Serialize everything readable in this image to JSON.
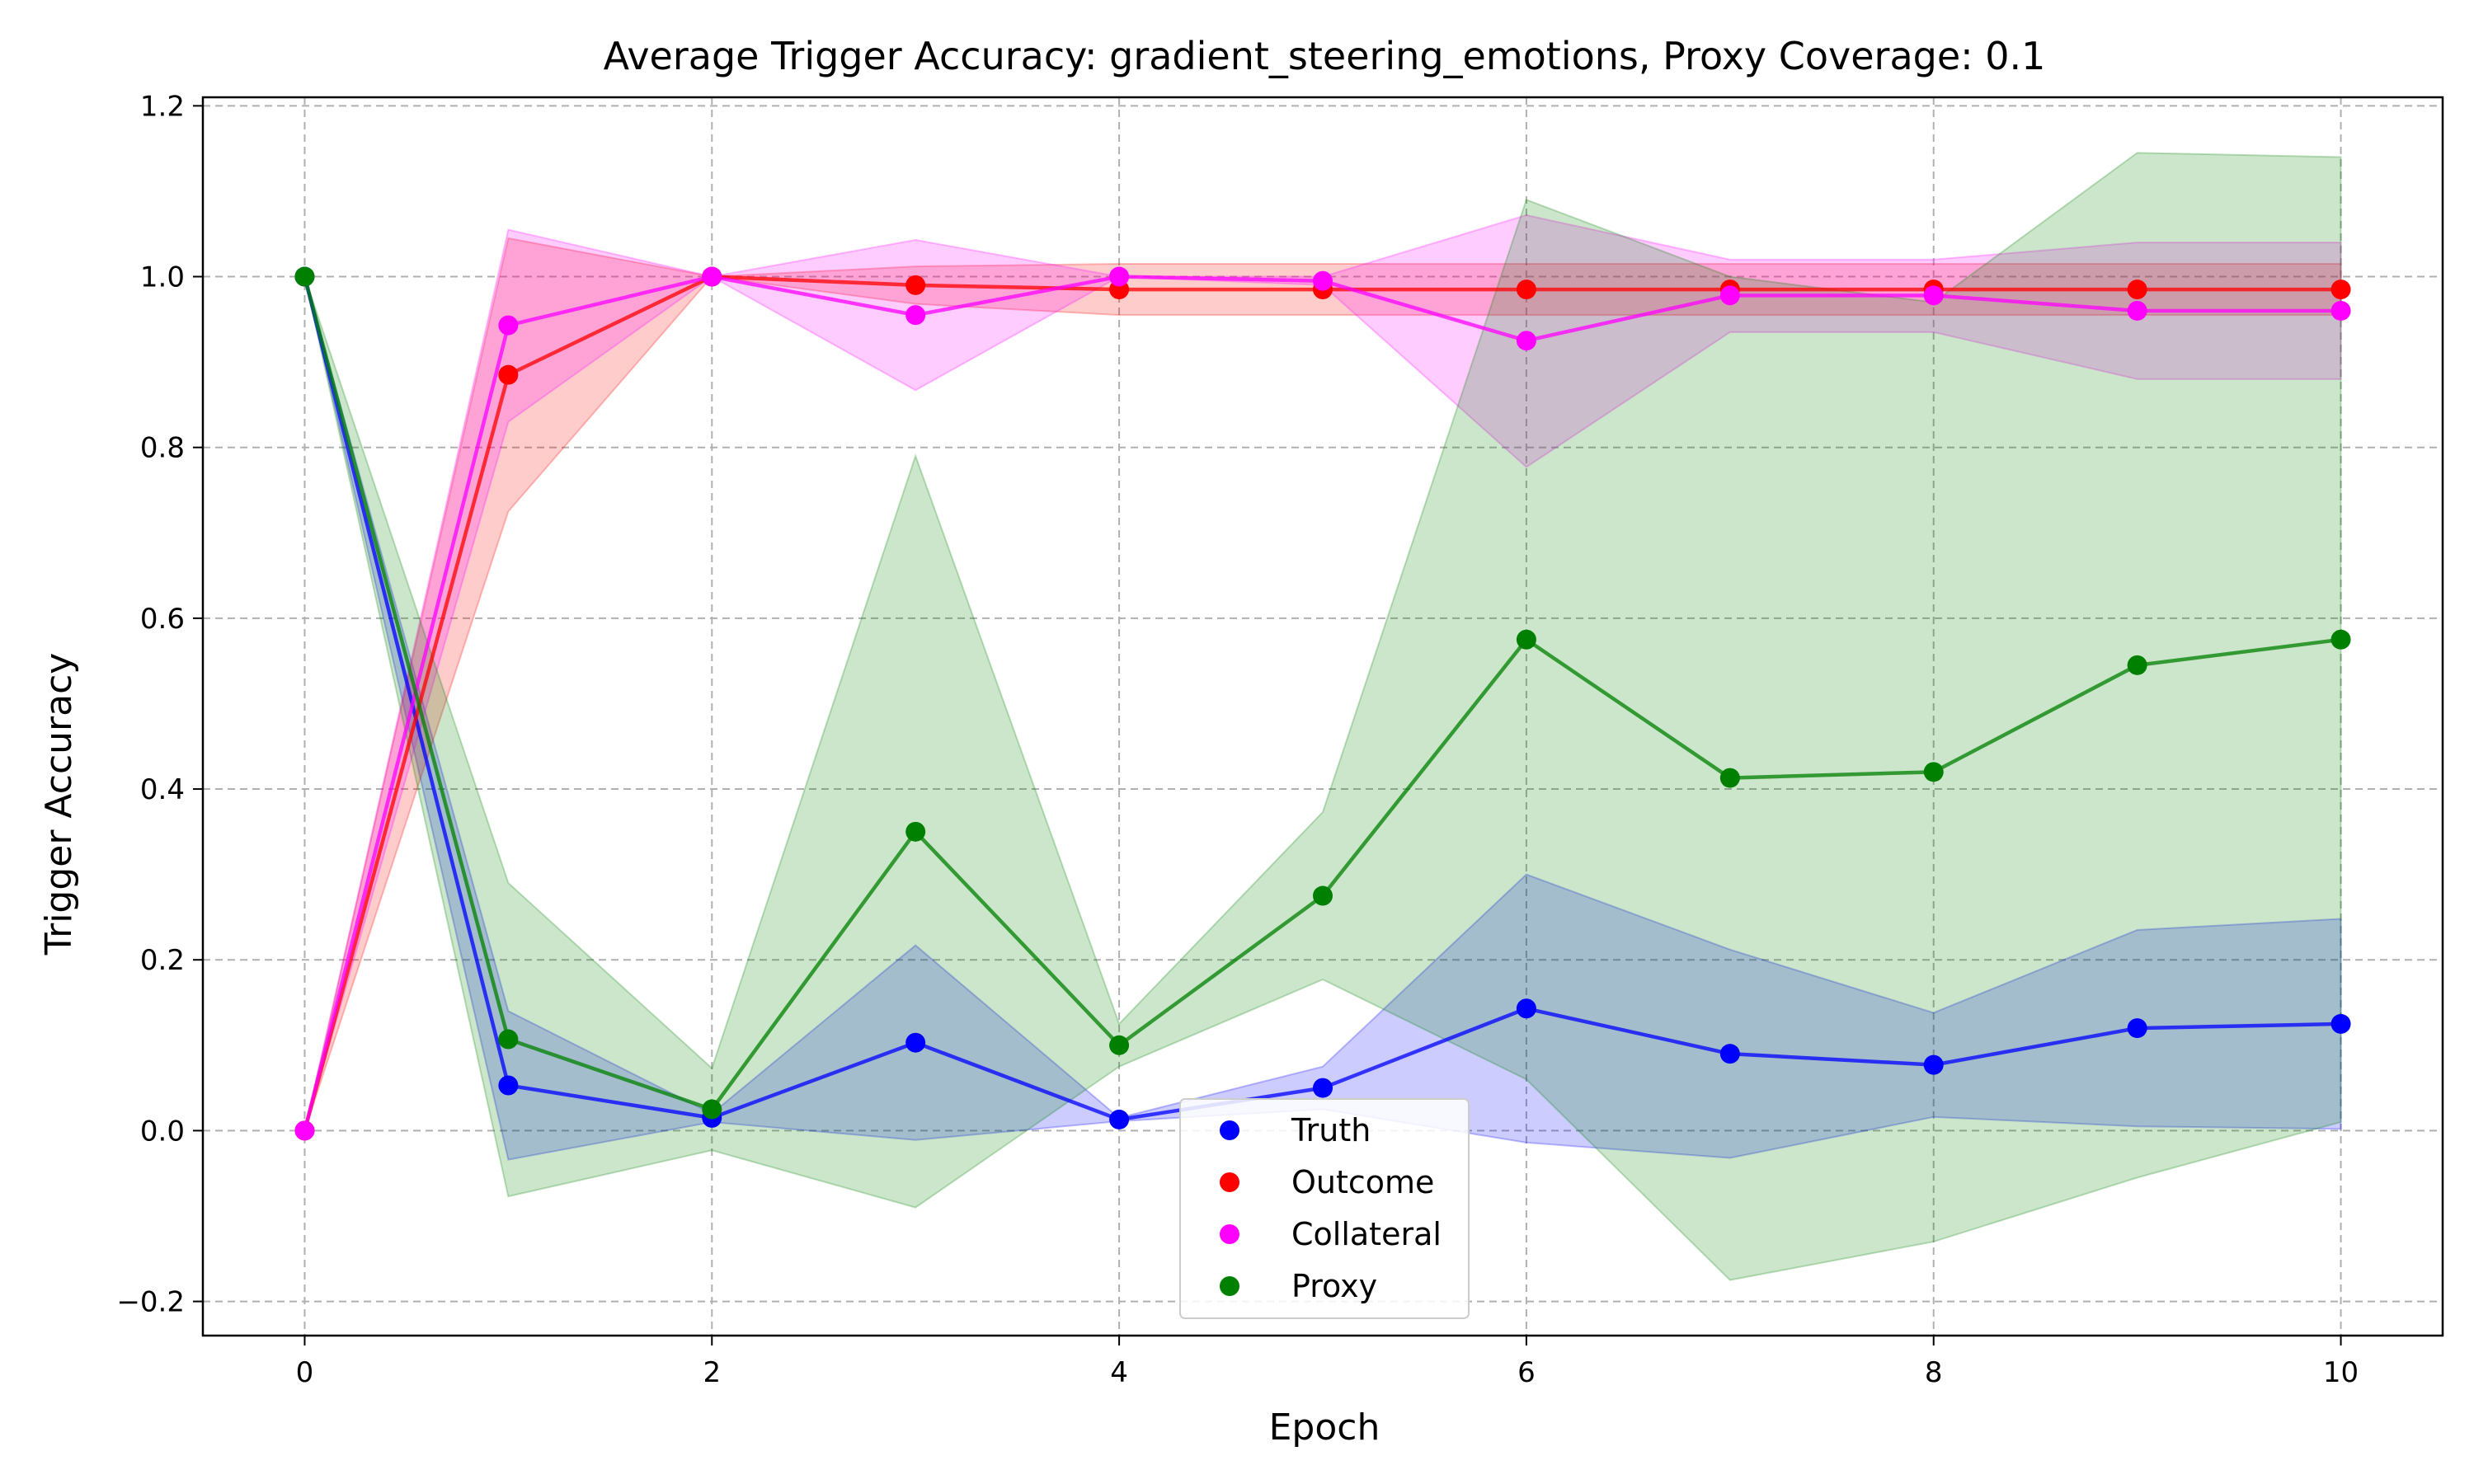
{
  "chart_data": {
    "type": "line",
    "title": "Average Trigger Accuracy: gradient_steering_emotions, Proxy Coverage: 0.1",
    "xlabel": "Epoch",
    "ylabel": "Trigger Accuracy",
    "xlim": [
      -0.5,
      10.5
    ],
    "ylim": [
      -0.24,
      1.21
    ],
    "xticks": [
      0,
      2,
      4,
      6,
      8,
      10
    ],
    "xtick_labels": [
      "0",
      "2",
      "4",
      "6",
      "8",
      "10"
    ],
    "yticks": [
      -0.2,
      0.0,
      0.2,
      0.4,
      0.6,
      0.8,
      1.0,
      1.2
    ],
    "ytick_labels": [
      "−0.2",
      "0.0",
      "0.2",
      "0.4",
      "0.6",
      "0.8",
      "1.0",
      "1.2"
    ],
    "grid": true,
    "legend_position": "bottom-center",
    "x": [
      0,
      1,
      2,
      3,
      4,
      5,
      6,
      7,
      8,
      9,
      10
    ],
    "series": [
      {
        "name": "Truth",
        "color": "#0000ff",
        "values": [
          1.0,
          0.053,
          0.015,
          0.103,
          0.013,
          0.05,
          0.143,
          0.09,
          0.077,
          0.12,
          0.125
        ],
        "upper": [
          1.0,
          0.14,
          0.02,
          0.217,
          0.015,
          0.075,
          0.3,
          0.212,
          0.138,
          0.235,
          0.248
        ],
        "lower": [
          1.0,
          -0.034,
          0.01,
          -0.011,
          0.011,
          0.025,
          -0.014,
          -0.032,
          0.016,
          0.005,
          0.002
        ]
      },
      {
        "name": "Outcome",
        "color": "#ff0000",
        "values": [
          0.0,
          0.885,
          1.0,
          0.99,
          0.985,
          0.985,
          0.985,
          0.985,
          0.985,
          0.985,
          0.985
        ],
        "upper": [
          0.0,
          1.045,
          1.0,
          1.012,
          1.015,
          1.015,
          1.015,
          1.015,
          1.015,
          1.015,
          1.015
        ],
        "lower": [
          0.0,
          0.725,
          1.0,
          0.968,
          0.955,
          0.955,
          0.955,
          0.955,
          0.955,
          0.955,
          0.955
        ]
      },
      {
        "name": "Collateral",
        "color": "#ff00ff",
        "values": [
          0.0,
          0.943,
          1.0,
          0.955,
          1.0,
          0.995,
          0.925,
          0.978,
          0.978,
          0.96,
          0.96
        ],
        "upper": [
          0.0,
          1.055,
          1.0,
          1.043,
          1.0,
          1.0,
          1.072,
          1.02,
          1.02,
          1.04,
          1.04
        ],
        "lower": [
          0.0,
          0.83,
          1.0,
          0.867,
          1.0,
          0.99,
          0.777,
          0.935,
          0.935,
          0.88,
          0.88
        ]
      },
      {
        "name": "Proxy",
        "color": "#008000",
        "values": [
          1.0,
          0.107,
          0.025,
          0.35,
          0.1,
          0.275,
          0.575,
          0.413,
          0.42,
          0.545,
          0.575
        ],
        "upper": [
          1.0,
          0.29,
          0.073,
          0.79,
          0.125,
          0.373,
          1.09,
          1.0,
          0.97,
          1.145,
          1.14
        ],
        "lower": [
          1.0,
          -0.077,
          -0.023,
          -0.09,
          0.075,
          0.177,
          0.06,
          -0.175,
          -0.13,
          -0.055,
          0.01
        ]
      }
    ]
  }
}
